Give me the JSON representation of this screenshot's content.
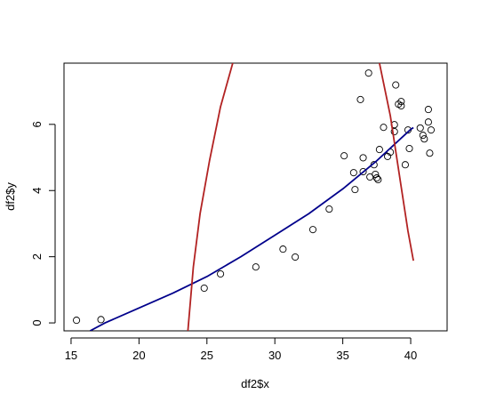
{
  "chart_data": {
    "type": "scatter",
    "xlabel": "df2$x",
    "ylabel": "df2$y",
    "xlim": [
      14.48,
      42.68
    ],
    "ylim": [
      -0.24,
      7.85
    ],
    "xticks": [
      15,
      20,
      25,
      30,
      35,
      40
    ],
    "yticks": [
      0,
      2,
      4,
      6
    ],
    "grid": false,
    "series": [
      {
        "type": "scatter",
        "color": "#000000",
        "x": [
          15.4,
          17.2,
          24.8,
          26.0,
          28.6,
          30.6,
          31.5,
          32.8,
          34.0,
          35.1,
          35.8,
          35.9,
          36.3,
          36.5,
          36.5,
          36.9,
          37.0,
          37.3,
          37.4,
          37.5,
          37.6,
          37.7,
          38.0,
          38.3,
          38.5,
          38.8,
          38.8,
          38.9,
          39.1,
          39.3,
          39.3,
          39.6,
          39.8,
          39.9,
          40.7,
          40.9,
          41.0,
          41.3,
          41.3,
          41.4,
          41.5
        ],
        "values": [
          0.08,
          0.1,
          1.05,
          1.48,
          1.69,
          2.23,
          1.99,
          2.82,
          3.44,
          5.05,
          4.54,
          4.03,
          6.75,
          4.99,
          4.57,
          7.55,
          4.41,
          4.78,
          4.49,
          4.38,
          4.33,
          5.24,
          5.91,
          5.03,
          5.16,
          5.99,
          5.78,
          7.19,
          6.61,
          6.69,
          6.56,
          4.78,
          5.83,
          5.27,
          5.89,
          5.67,
          5.56,
          6.45,
          6.07,
          5.13,
          5.83
        ]
      },
      {
        "type": "line",
        "color": "#00008b",
        "x": [
          16.4,
          17.5,
          20,
          22.5,
          25,
          27.5,
          30,
          32.5,
          35,
          37.5,
          40,
          40.2
        ],
        "values": [
          -0.24,
          0.0,
          0.45,
          0.9,
          1.4,
          2.0,
          2.65,
          3.3,
          4.05,
          4.9,
          5.85,
          5.9
        ]
      },
      {
        "type": "line",
        "color": "#b22222",
        "x": [
          23.6,
          24.0,
          24.5,
          25.2,
          26.0,
          26.9
        ],
        "values": [
          -0.24,
          1.69,
          3.31,
          4.92,
          6.53,
          7.85
        ]
      },
      {
        "type": "line",
        "color": "#b22222",
        "x": [
          37.7,
          38.5,
          39.3,
          39.8,
          40.2
        ],
        "values": [
          7.85,
          6.26,
          4.11,
          2.77,
          1.88
        ]
      }
    ]
  }
}
